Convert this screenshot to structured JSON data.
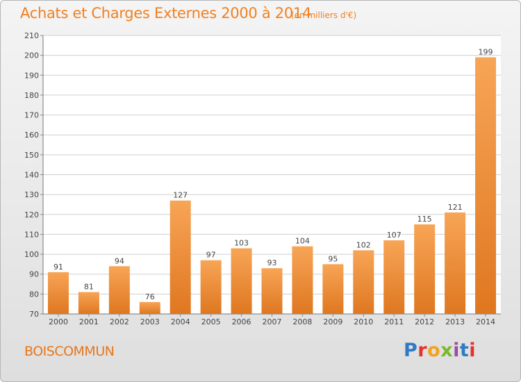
{
  "header": {
    "title": "Achats et Charges Externes 2000 à 2014",
    "subtitle": "(en milliers d'€)"
  },
  "footer": {
    "commune": "BOISCOMMUN",
    "logo_text": "Proxiti"
  },
  "colors": {
    "accent": "#f08020",
    "bar_light": "#f7a556",
    "bar_dark": "#e07a22"
  },
  "chart_data": {
    "type": "bar",
    "title": "Achats et Charges Externes 2000 à 2014",
    "subtitle": "(en milliers d'€)",
    "xlabel": "",
    "ylabel": "",
    "categories": [
      "2000",
      "2001",
      "2002",
      "2003",
      "2004",
      "2005",
      "2006",
      "2007",
      "2008",
      "2009",
      "2010",
      "2011",
      "2012",
      "2013",
      "2014"
    ],
    "values": [
      91,
      81,
      94,
      76,
      127,
      97,
      103,
      93,
      104,
      95,
      102,
      107,
      115,
      121,
      199
    ],
    "ylim": [
      70,
      210
    ],
    "yticks": [
      70,
      80,
      90,
      100,
      110,
      120,
      130,
      140,
      150,
      160,
      170,
      180,
      190,
      200,
      210
    ],
    "grid": true,
    "legend": "none"
  }
}
